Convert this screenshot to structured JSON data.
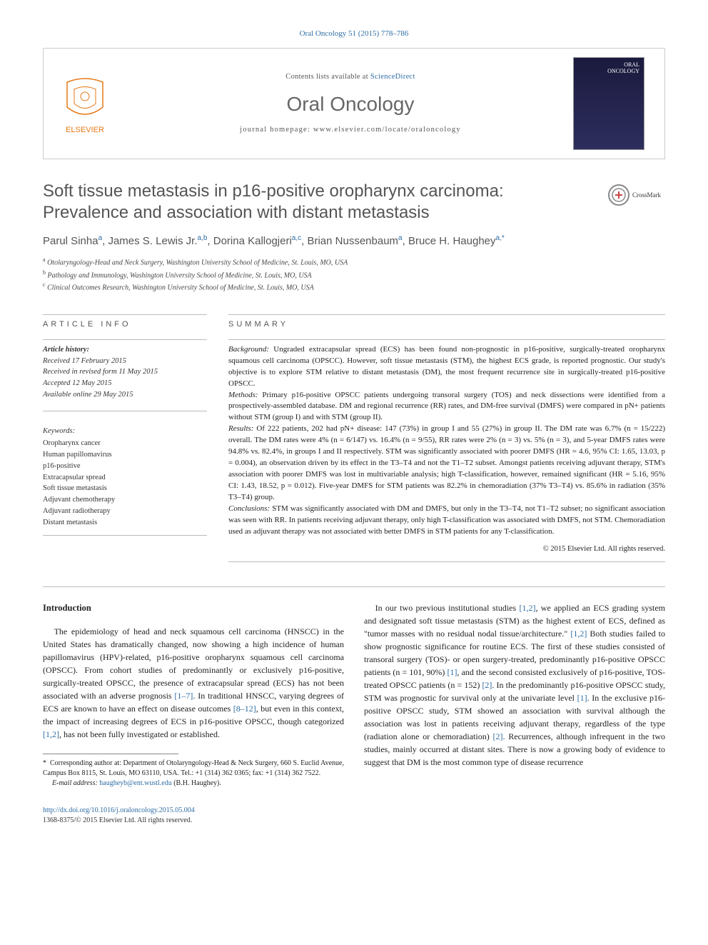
{
  "top_cite": "Oral Oncology 51 (2015) 778–786",
  "header": {
    "contents_prefix": "Contents lists available at ",
    "contents_link": "ScienceDirect",
    "journal": "Oral Oncology",
    "homepage_prefix": "journal homepage: ",
    "homepage_url": "www.elsevier.com/locate/oraloncology",
    "cover_label": "ORAL\nONCOLOGY"
  },
  "title": "Soft tissue metastasis in p16-positive oropharynx carcinoma: Prevalence and association with distant metastasis",
  "crossmark": "CrossMark",
  "authors_html": "Parul Sinha<sup class='sup'>a</sup>, James S. Lewis Jr.<sup class='sup'>a,b</sup>, Dorina Kallogjeri<sup class='sup'>a,c</sup>, Brian Nussenbaum<sup class='sup'>a</sup>, Bruce H. Haughey<sup class='sup'>a,*</sup>",
  "affiliations": {
    "a": "Otolaryngology-Head and Neck Surgery, Washington University School of Medicine, St. Louis, MO, USA",
    "b": "Pathology and Immunology, Washington University School of Medicine, St. Louis, MO, USA",
    "c": "Clinical Outcomes Research, Washington University School of Medicine, St. Louis, MO, USA"
  },
  "article_info_label": "ARTICLE INFO",
  "summary_label": "SUMMARY",
  "history": {
    "label": "Article history:",
    "received": "Received 17 February 2015",
    "revised": "Received in revised form 11 May 2015",
    "accepted": "Accepted 12 May 2015",
    "online": "Available online 29 May 2015"
  },
  "keywords": {
    "label": "Keywords:",
    "items": [
      "Oropharynx cancer",
      "Human papillomavirus",
      "p16-positive",
      "Extracapsular spread",
      "Soft tissue metastasis",
      "Adjuvant chemotherapy",
      "Adjuvant radiotherapy",
      "Distant metastasis"
    ]
  },
  "summary": {
    "background_label": "Background:",
    "background": " Ungraded extracapsular spread (ECS) has been found non-prognostic in p16-positive, surgically-treated oropharynx squamous cell carcinoma (OPSCC). However, soft tissue metastasis (STM), the highest ECS grade, is reported prognostic. Our study's objective is to explore STM relative to distant metastasis (DM), the most frequent recurrence site in surgically-treated p16-positive OPSCC.",
    "methods_label": "Methods:",
    "methods": " Primary p16-positive OPSCC patients undergoing transoral surgery (TOS) and neck dissections were identified from a prospectively-assembled database. DM and regional recurrence (RR) rates, and DM-free survival (DMFS) were compared in pN+ patients without STM (group I) and with STM (group II).",
    "results_label": "Results:",
    "results": " Of 222 patients, 202 had pN+ disease: 147 (73%) in group I and 55 (27%) in group II. The DM rate was 6.7% (n = 15/222) overall. The DM rates were 4% (n = 6/147) vs. 16.4% (n = 9/55), RR rates were 2% (n = 3) vs. 5% (n = 3), and 5-year DMFS rates were 94.8% vs. 82.4%, in groups I and II respectively. STM was significantly associated with poorer DMFS (HR = 4.6, 95% CI: 1.65, 13.03, p = 0.004), an observation driven by its effect in the T3–T4 and not the T1–T2 subset. Amongst patients receiving adjuvant therapy, STM's association with poorer DMFS was lost in multivariable analysis; high T-classification, however, remained significant (HR = 5.16, 95% CI: 1.43, 18.52, p = 0.012). Five-year DMFS for STM patients was 82.2% in chemoradiation (37% T3–T4) vs. 85.6% in radiation (35% T3–T4) group.",
    "conclusions_label": "Conclusions:",
    "conclusions": " STM was significantly associated with DM and DMFS, but only in the T3–T4, not T1–T2 subset; no significant association was seen with RR. In patients receiving adjuvant therapy, only high T-classification was associated with DMFS, not STM. Chemoradiation used as adjuvant therapy was not associated with better DMFS in STM patients for any T-classification.",
    "copyright": "© 2015 Elsevier Ltd. All rights reserved."
  },
  "intro_heading": "Introduction",
  "intro_p1": "The epidemiology of head and neck squamous cell carcinoma (HNSCC) in the United States has dramatically changed, now showing a high incidence of human papillomavirus (HPV)-related, p16-positive oropharynx squamous cell carcinoma (OPSCC). From cohort studies of predominantly or exclusively p16-positive, surgically-treated OPSCC, the presence of extracapsular spread (ECS) has not been associated with an adverse prognosis [1–7]. In traditional HNSCC, varying degrees of ECS are known to have an effect on disease outcomes [8–12], but even in this context, the impact of increasing degrees of ECS in p16-positive OPSCC, though categorized [1,2], has not been fully investigated or established.",
  "intro_p2": "In our two previous institutional studies [1,2], we applied an ECS grading system and designated soft tissue metastasis (STM) as the highest extent of ECS, defined as \"tumor masses with no residual nodal tissue/architecture.\" [1,2] Both studies failed to show prognostic significance for routine ECS. The first of these studies consisted of transoral surgery (TOS)- or open surgery-treated, predominantly p16-positive OPSCC patients (n = 101, 90%) [1], and the second consisted exclusively of p16-positive, TOS-treated OPSCC patients (n = 152) [2]. In the predominantly p16-positive OPSCC study, STM was prognostic for survival only at the univariate level [1]. In the exclusive p16-positive OPSCC study, STM showed an association with survival although the association was lost in patients receiving adjuvant therapy, regardless of the type (radiation alone or chemoradiation) [2]. Recurrences, although infrequent in the two studies, mainly occurred at distant sites. There is now a growing body of evidence to suggest that DM is the most common type of disease recurrence",
  "footnotes": {
    "corr_label": "* ",
    "corr_text": "Corresponding author at: Department of Otolaryngology-Head & Neck Surgery, 660 S. Euclid Avenue, Campus Box 8115, St. Louis, MO 63110, USA. Tel.: +1 (314) 362 0365; fax: +1 (314) 362 7522.",
    "email_label": "E-mail address: ",
    "email": "haugheyb@ent.wustl.edu",
    "email_suffix": " (B.H. Haughey)."
  },
  "footer": {
    "doi": "http://dx.doi.org/10.1016/j.oraloncology.2015.05.004",
    "issn": "1368-8375/© 2015 Elsevier Ltd. All rights reserved."
  },
  "colors": {
    "link": "#2e6da4",
    "elsevier_orange": "#e67817",
    "text_gray": "#555555"
  }
}
